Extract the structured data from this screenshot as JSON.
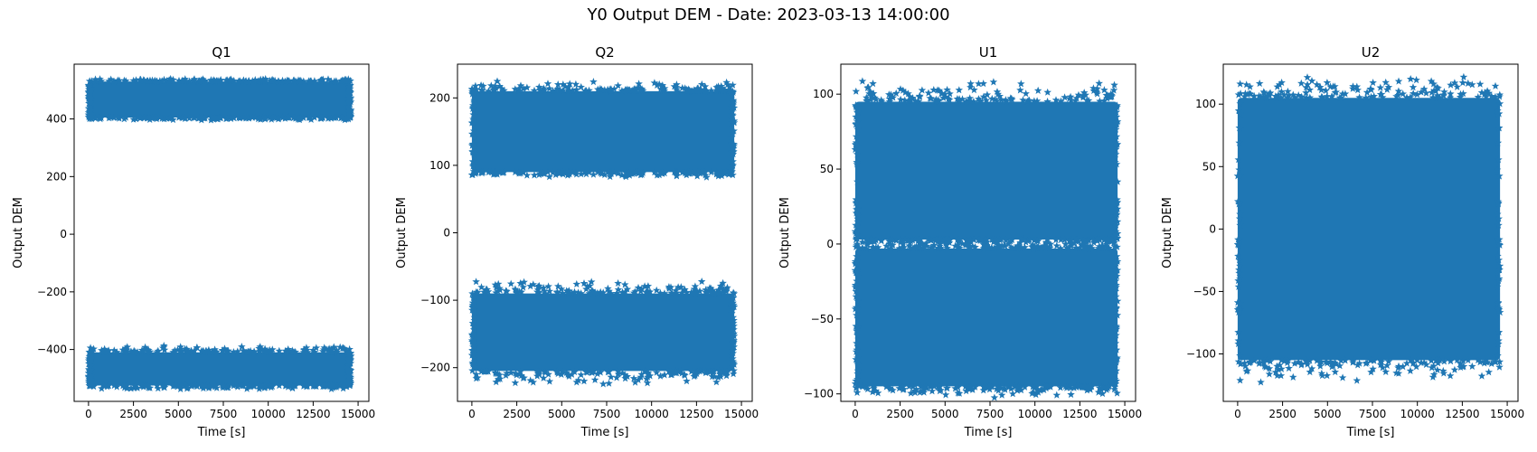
{
  "figure": {
    "suptitle": "Y0 Output DEM - Date: 2023-03-13 14:00:00"
  },
  "colors": {
    "marker": "#1f77b4",
    "axes": "#000000",
    "background": "#ffffff"
  },
  "chart_data": [
    {
      "type": "scatter",
      "title": "Q1",
      "xlabel": "Time [s]",
      "ylabel": "Output DEM",
      "xlim": [
        -800,
        15600
      ],
      "ylim": [
        -580,
        590
      ],
      "xticks": [
        0,
        2500,
        5000,
        7500,
        10000,
        12500,
        15000
      ],
      "yticks": [
        -400,
        -200,
        0,
        200,
        400
      ],
      "marker": "star",
      "series": [
        {
          "x": [
            0,
            14600
          ],
          "band": [
            405,
            530
          ],
          "outlier_y": [
            395,
            540
          ]
        },
        {
          "x": [
            0,
            14600
          ],
          "band": [
            -525,
            -410
          ],
          "outlier_y": [
            -540,
            -385
          ]
        }
      ]
    },
    {
      "type": "scatter",
      "title": "Q2",
      "xlabel": "Time [s]",
      "ylabel": "Output DEM",
      "xlim": [
        -800,
        15600
      ],
      "ylim": [
        -250,
        250
      ],
      "xticks": [
        0,
        2500,
        5000,
        7500,
        10000,
        12500,
        15000
      ],
      "yticks": [
        -200,
        -100,
        0,
        100,
        200
      ],
      "marker": "star",
      "series": [
        {
          "x": [
            0,
            14600
          ],
          "band": [
            90,
            210
          ],
          "outlier_y": [
            82,
            226
          ]
        },
        {
          "x": [
            0,
            14600
          ],
          "band": [
            -205,
            -90
          ],
          "outlier_y": [
            -226,
            -70
          ]
        }
      ]
    },
    {
      "type": "scatter",
      "title": "U1",
      "xlabel": "Time [s]",
      "ylabel": "Output DEM",
      "xlim": [
        -800,
        15600
      ],
      "ylim": [
        -105,
        120
      ],
      "xticks": [
        0,
        2500,
        5000,
        7500,
        10000,
        12500,
        15000
      ],
      "yticks": [
        -100,
        -50,
        0,
        50,
        100
      ],
      "marker": "star",
      "series": [
        {
          "x": [
            0,
            14600
          ],
          "band": [
            3,
            95
          ],
          "outlier_y": [
            0,
            110
          ]
        },
        {
          "x": [
            0,
            14600
          ],
          "band": [
            -95,
            -3
          ],
          "outlier_y": [
            -103,
            2
          ]
        }
      ]
    },
    {
      "type": "scatter",
      "title": "U2",
      "xlabel": "Time [s]",
      "ylabel": "Output DEM",
      "xlim": [
        -800,
        15600
      ],
      "ylim": [
        -138,
        132
      ],
      "xticks": [
        0,
        2500,
        5000,
        7500,
        10000,
        12500,
        15000
      ],
      "yticks": [
        -100,
        -50,
        0,
        50,
        100
      ],
      "marker": "star",
      "series": [
        {
          "x": [
            0,
            14600
          ],
          "band": [
            -105,
            105
          ],
          "outlier_y": [
            -125,
            125
          ]
        }
      ]
    }
  ]
}
